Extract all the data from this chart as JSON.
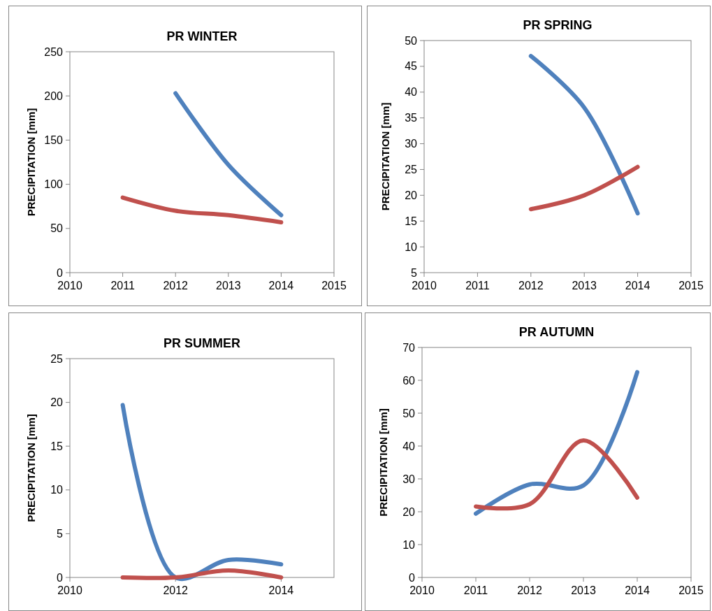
{
  "chart_data": [
    {
      "type": "line",
      "title": "PR WINTER",
      "ylabel": "PRECIPITATION [mm]",
      "xlim": [
        2010,
        2015
      ],
      "xticks": [
        2010,
        2011,
        2012,
        2013,
        2014,
        2015
      ],
      "ylim": [
        0,
        250
      ],
      "yticks": [
        0,
        50,
        100,
        150,
        200,
        250
      ],
      "grid": false,
      "series": [
        {
          "color": "#4f81bd",
          "x": [
            2012,
            2013,
            2014
          ],
          "values": [
            203,
            122,
            65
          ]
        },
        {
          "color": "#c0504d",
          "x": [
            2011,
            2012,
            2013,
            2014
          ],
          "values": [
            85,
            70,
            65,
            57
          ]
        }
      ]
    },
    {
      "type": "line",
      "title": "PR SPRING",
      "ylabel": "PRECIPITATION [mm]",
      "xlim": [
        2010,
        2015
      ],
      "xticks": [
        2010,
        2011,
        2012,
        2013,
        2014,
        2015
      ],
      "ylim": [
        5,
        50
      ],
      "yticks": [
        5,
        10,
        15,
        20,
        25,
        30,
        35,
        40,
        45,
        50
      ],
      "grid": false,
      "series": [
        {
          "color": "#4f81bd",
          "x": [
            2012,
            2013,
            2014
          ],
          "values": [
            47,
            37,
            16.5
          ]
        },
        {
          "color": "#c0504d",
          "x": [
            2012,
            2013,
            2014
          ],
          "values": [
            17.3,
            20,
            25.5
          ]
        }
      ]
    },
    {
      "type": "line",
      "title": "PR SUMMER",
      "ylabel": "PRECIPITATION [mm]",
      "xlim": [
        2010,
        2015
      ],
      "xticks": [
        2010,
        2012,
        2014
      ],
      "ylim": [
        0,
        25
      ],
      "yticks": [
        0,
        5,
        10,
        15,
        20,
        25
      ],
      "grid": false,
      "series": [
        {
          "color": "#4f81bd",
          "x": [
            2011,
            2012,
            2013,
            2014
          ],
          "values": [
            19.7,
            0,
            2,
            1.5
          ]
        },
        {
          "color": "#c0504d",
          "x": [
            2011,
            2012,
            2013,
            2014
          ],
          "values": [
            0,
            0,
            0.8,
            0
          ]
        }
      ]
    },
    {
      "type": "line",
      "title": "PR AUTUMN",
      "ylabel": "PRECIPITATION [mm]",
      "xlim": [
        2010,
        2015
      ],
      "xticks": [
        2010,
        2011,
        2012,
        2013,
        2014,
        2015
      ],
      "ylim": [
        0,
        70
      ],
      "yticks": [
        0,
        10,
        20,
        30,
        40,
        50,
        60,
        70
      ],
      "grid": false,
      "series": [
        {
          "color": "#4f81bd",
          "x": [
            2011,
            2012,
            2013,
            2014
          ],
          "values": [
            19.4,
            28.3,
            28,
            62.5
          ]
        },
        {
          "color": "#c0504d",
          "x": [
            2011,
            2012,
            2013,
            2014
          ],
          "values": [
            21.6,
            22.3,
            41.7,
            24.3
          ]
        }
      ]
    }
  ]
}
